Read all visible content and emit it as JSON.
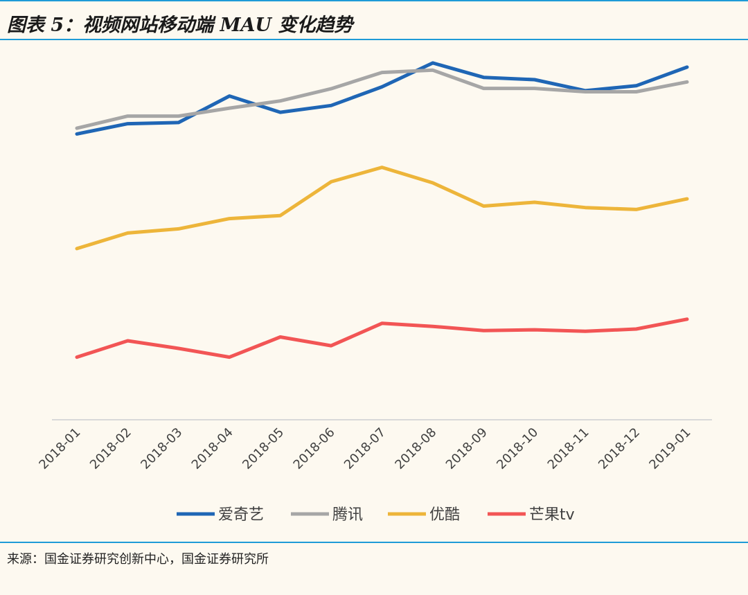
{
  "header": {
    "title": "图表 5：视频网站移动端 MAU 变化趋势"
  },
  "footer": {
    "source": "来源：国金证券研究创新中心，国金证券研究所"
  },
  "chart_data": {
    "type": "line",
    "title": "图表 5：视频网站移动端 MAU 变化趋势",
    "xlabel": "",
    "ylabel": "",
    "ylim": [
      0,
      100
    ],
    "grid": false,
    "legend_position": "bottom",
    "categories": [
      "2018-01",
      "2018-02",
      "2018-03",
      "2018-04",
      "2018-05",
      "2018-06",
      "2018-07",
      "2018-08",
      "2018-09",
      "2018-10",
      "2018-11",
      "2018-12",
      "2019-01"
    ],
    "series": [
      {
        "name": "爱奇艺",
        "color": "#1F66B5",
        "values": [
          75.3,
          78.0,
          78.3,
          85.3,
          81.0,
          82.8,
          87.7,
          94.0,
          90.2,
          89.6,
          86.7,
          88.0,
          92.9
        ]
      },
      {
        "name": "腾讯",
        "color": "#A6A6A6",
        "values": [
          76.8,
          80.0,
          80.0,
          82.1,
          84.0,
          87.2,
          91.5,
          92.1,
          87.3,
          87.3,
          86.4,
          86.4,
          89.0
        ]
      },
      {
        "name": "优酷",
        "color": "#EDB53A",
        "values": [
          45.1,
          49.2,
          50.3,
          53.0,
          53.8,
          62.7,
          66.5,
          62.4,
          56.3,
          57.3,
          55.9,
          55.4,
          58.2
        ]
      },
      {
        "name": "芒果tv",
        "color": "#F25555",
        "values": [
          16.5,
          20.8,
          18.8,
          16.5,
          21.8,
          19.5,
          25.4,
          24.6,
          23.5,
          23.7,
          23.3,
          23.9,
          26.5
        ]
      }
    ]
  }
}
